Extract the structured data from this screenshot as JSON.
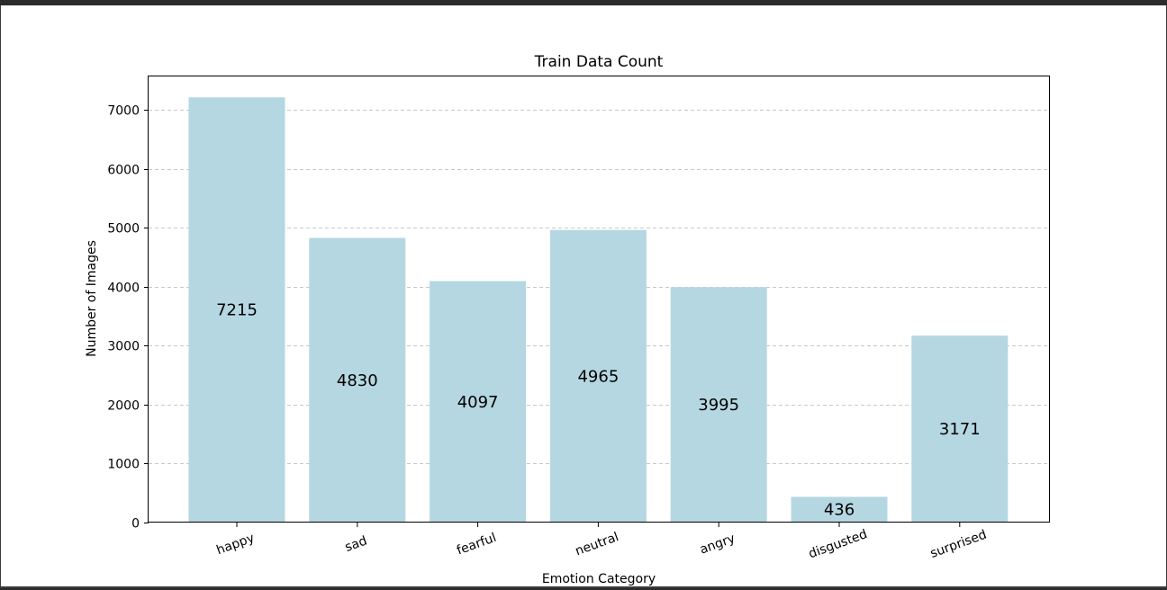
{
  "chart_data": {
    "type": "bar",
    "title": "Train Data Count",
    "xlabel": "Emotion Category",
    "ylabel": "Number of Images",
    "categories": [
      "happy",
      "sad",
      "fearful",
      "neutral",
      "angry",
      "disgusted",
      "surprised"
    ],
    "values": [
      7215,
      4830,
      4097,
      4965,
      3995,
      436,
      3171
    ],
    "data_labels": [
      "7215",
      "4830",
      "4097",
      "4965",
      "3995",
      "436",
      "3171"
    ],
    "ylim": [
      0,
      7570
    ],
    "yticks": [
      0,
      1000,
      2000,
      3000,
      4000,
      5000,
      6000,
      7000
    ],
    "ytick_labels": [
      "0",
      "1000",
      "2000",
      "3000",
      "4000",
      "5000",
      "6000",
      "7000"
    ],
    "grid": "y-dashed",
    "x_tick_rotation_deg": 20,
    "colors": {
      "bar": "#b5d7e2",
      "grid": "#c8c8c8",
      "axes": "#000000",
      "background": "#ffffff",
      "window": "#2b2b2b"
    }
  }
}
